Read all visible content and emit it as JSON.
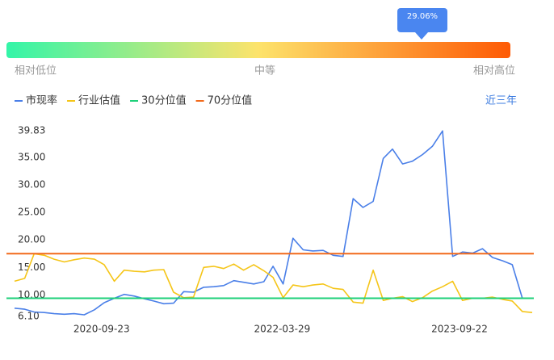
{
  "chart_data": {
    "type": "line",
    "gauge": {
      "tooltip": "29.06%",
      "labels": [
        "相对低位",
        "中等",
        "相对高位"
      ]
    },
    "range_button": "近三年",
    "grid": false,
    "ylim": [
      6.1,
      39.83
    ],
    "yticks": [
      {
        "value": 6.1,
        "label": "6.10"
      },
      {
        "value": 10,
        "label": "10.00"
      },
      {
        "value": 15,
        "label": "15.00"
      },
      {
        "value": 20,
        "label": "20.00"
      },
      {
        "value": 25,
        "label": "25.00"
      },
      {
        "value": 30,
        "label": "30.00"
      },
      {
        "value": 35,
        "label": "35.00"
      },
      {
        "value": 39.83,
        "label": "39.83"
      }
    ],
    "xlim": [
      "2020-01-01",
      "2024-05-06"
    ],
    "xticks": [
      "2020-09-23",
      "2022-03-29",
      "2023-09-22"
    ],
    "x": [
      "2020-01-01",
      "2020-02-01",
      "2020-03-01",
      "2020-04-01",
      "2020-05-01",
      "2020-06-01",
      "2020-07-01",
      "2020-08-01",
      "2020-09-01",
      "2020-10-01",
      "2020-11-01",
      "2020-12-01",
      "2021-01-01",
      "2021-02-01",
      "2021-03-01",
      "2021-04-01",
      "2021-05-01",
      "2021-06-01",
      "2021-07-01",
      "2021-08-01",
      "2021-09-01",
      "2021-10-01",
      "2021-11-01",
      "2021-12-01",
      "2022-01-01",
      "2022-02-01",
      "2022-03-01",
      "2022-04-01",
      "2022-05-01",
      "2022-06-01",
      "2022-07-01",
      "2022-08-01",
      "2022-09-01",
      "2022-10-01",
      "2022-11-01",
      "2022-12-01",
      "2023-01-01",
      "2023-02-01",
      "2023-03-01",
      "2023-04-01",
      "2023-05-01",
      "2023-06-01",
      "2023-07-01",
      "2023-08-01",
      "2023-09-01",
      "2023-10-01",
      "2023-11-01",
      "2023-12-01",
      "2024-01-01",
      "2024-02-01",
      "2024-03-01",
      "2024-04-01",
      "2024-05-01"
    ],
    "series": [
      {
        "name": "市现率",
        "color": "#4a7fe8",
        "values": [
          7.6,
          7.4,
          6.9,
          6.8,
          6.6,
          6.5,
          6.6,
          6.4,
          7.3,
          8.6,
          9.4,
          10.1,
          9.8,
          9.3,
          8.9,
          8.4,
          8.5,
          10.6,
          10.5,
          11.4,
          11.5,
          11.7,
          12.6,
          12.3,
          12.0,
          12.4,
          15.2,
          12.0,
          20.3,
          18.2,
          18.0,
          18.1,
          17.2,
          17.0,
          27.5,
          25.9,
          27.0,
          34.8,
          36.5,
          33.8,
          34.3,
          35.5,
          37.0,
          39.8,
          17.0,
          17.8,
          17.6,
          18.4,
          16.8,
          16.2,
          15.5,
          9.4,
          9.4
        ]
      },
      {
        "name": "行业估值",
        "color": "#f5c518",
        "values": [
          12.5,
          13,
          17.5,
          17.2,
          16.5,
          16.0,
          16.4,
          16.7,
          16.5,
          15.5,
          12.5,
          14.5,
          14.3,
          14.2,
          14.5,
          14.6,
          10.5,
          9.5,
          9.6,
          15.0,
          15.2,
          14.8,
          15.6,
          14.5,
          15.5,
          14.4,
          13.2,
          9.5,
          11.8,
          11.5,
          11.8,
          12.0,
          11.2,
          11.0,
          8.7,
          8.5,
          14.5,
          9.0,
          9.4,
          9.7,
          8.8,
          9.5,
          10.7,
          11.5,
          12.5,
          9.0,
          9.4,
          9.4,
          9.6,
          9.2,
          8.9,
          7.0,
          6.8
        ]
      },
      {
        "name": "30分位值",
        "color": "#1ed07a",
        "value": 9.4
      },
      {
        "name": "70分位值",
        "color": "#f26a1b",
        "value": 17.5
      }
    ]
  }
}
